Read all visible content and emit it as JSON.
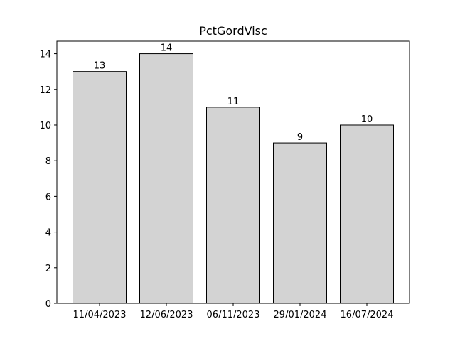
{
  "chart_data": {
    "type": "bar",
    "title": "PctGordVisc",
    "xlabel": "",
    "ylabel": "",
    "categories": [
      "11/04/2023",
      "12/06/2023",
      "06/11/2023",
      "29/01/2024",
      "16/07/2024"
    ],
    "values": [
      13,
      14,
      11,
      9,
      10
    ],
    "data_labels": [
      "13",
      "14",
      "11",
      "9",
      "10"
    ],
    "ylim": [
      0,
      14.7
    ],
    "yticks": [
      0,
      2,
      4,
      6,
      8,
      10,
      12,
      14
    ],
    "ytick_labels": [
      "0",
      "2",
      "4",
      "6",
      "8",
      "10",
      "12",
      "14"
    ],
    "grid": false,
    "bar_color": "#d3d3d3",
    "edge_color": "#000000"
  }
}
